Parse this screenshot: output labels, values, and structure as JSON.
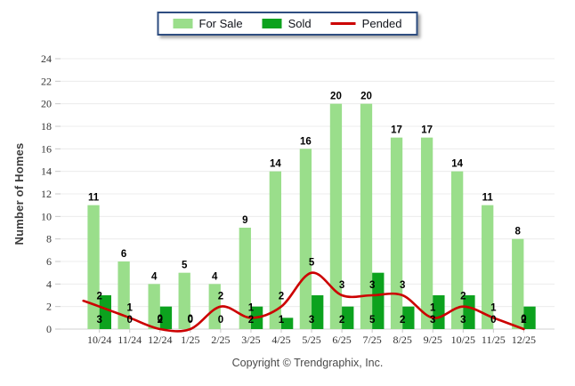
{
  "legend": {
    "items": [
      {
        "label": "For Sale",
        "type": "bar",
        "color": "#9ade8b"
      },
      {
        "label": "Sold",
        "type": "bar",
        "color": "#0ca21e"
      },
      {
        "label": "Pended",
        "type": "line",
        "color": "#cc0000"
      }
    ]
  },
  "y_axis_title": "Number of Homes",
  "footer": "Copyright © Trendgraphix, Inc.",
  "chart_data": {
    "type": "bar",
    "subtype": "grouped-bars-with-line",
    "categories": [
      "10/24",
      "11/24",
      "12/24",
      "1/25",
      "2/25",
      "3/25",
      "4/25",
      "5/25",
      "6/25",
      "7/25",
      "8/25",
      "9/25",
      "10/25",
      "11/25",
      "12/25"
    ],
    "series": [
      {
        "name": "For Sale",
        "type": "bar",
        "color": "#9ade8b",
        "values": [
          11,
          6,
          4,
          5,
          4,
          9,
          14,
          16,
          20,
          20,
          17,
          17,
          14,
          11,
          8
        ]
      },
      {
        "name": "Sold",
        "type": "bar",
        "color": "#0ca21e",
        "values": [
          3,
          0,
          2,
          0,
          0,
          2,
          1,
          3,
          2,
          5,
          2,
          3,
          3,
          0,
          2
        ]
      },
      {
        "name": "Pended",
        "type": "line",
        "color": "#cc0000",
        "values": [
          2,
          1,
          0,
          0,
          2,
          1,
          2,
          5,
          3,
          3,
          3,
          1,
          2,
          1,
          0
        ]
      }
    ],
    "title": "",
    "xlabel": "",
    "ylabel": "Number of Homes",
    "ylim": [
      0,
      24
    ],
    "ytick_step": 2,
    "grid": true,
    "legend_position": "top",
    "data_labels": true
  },
  "colors": {
    "grid": "#ececec",
    "axis": "#d0d0d0",
    "tick": "#c8c8c8",
    "tick_label": "#333333",
    "data_label": "#000000",
    "legend_border": "#2e4d80"
  }
}
